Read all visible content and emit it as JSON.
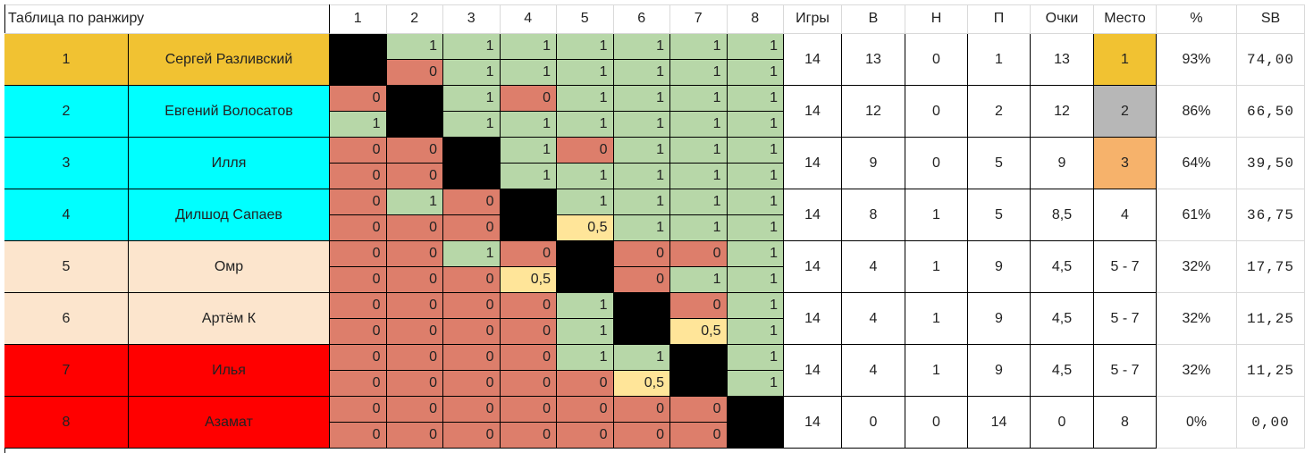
{
  "table": {
    "title": "Таблица по ранжиру",
    "column_numbers": [
      "1",
      "2",
      "3",
      "4",
      "5",
      "6",
      "7",
      "8"
    ],
    "stat_headers": [
      "Игры",
      "В",
      "Н",
      "П",
      "Очки",
      "Место",
      "%",
      "SB"
    ],
    "colors": {
      "win": "#b7d7a8",
      "loss": "#dd7e6b",
      "draw": "#ffe599",
      "self": "#000000",
      "first_place": "#f1c232",
      "second_place": "#b7b7b7",
      "third_place": "#f6b26b",
      "cyan_group": "#00ffff",
      "peach_group": "#fce5cd",
      "red_group": "#ff0000"
    },
    "players": [
      {
        "num": "1",
        "name": "Сергей Разливский",
        "row_color": "#f1c232",
        "r1": [
          "",
          "1",
          "1",
          "1",
          "1",
          "1",
          "1",
          "1"
        ],
        "r2": [
          "",
          "0",
          "1",
          "1",
          "1",
          "1",
          "1",
          "1"
        ],
        "games": "14",
        "wins": "13",
        "draws": "0",
        "losses": "1",
        "points": "13",
        "place": "1",
        "place_color": "#f1c232",
        "percent": "93%",
        "sb": "74,00"
      },
      {
        "num": "2",
        "name": "Евгений Волосатов",
        "row_color": "#00ffff",
        "r1": [
          "0",
          "",
          "1",
          "0",
          "1",
          "1",
          "1",
          "1"
        ],
        "r2": [
          "1",
          "",
          "1",
          "1",
          "1",
          "1",
          "1",
          "1"
        ],
        "games": "14",
        "wins": "12",
        "draws": "0",
        "losses": "2",
        "points": "12",
        "place": "2",
        "place_color": "#b7b7b7",
        "percent": "86%",
        "sb": "66,50"
      },
      {
        "num": "3",
        "name": "Илля",
        "row_color": "#00ffff",
        "r1": [
          "0",
          "0",
          "",
          "1",
          "0",
          "1",
          "1",
          "1"
        ],
        "r2": [
          "0",
          "0",
          "",
          "1",
          "1",
          "1",
          "1",
          "1"
        ],
        "games": "14",
        "wins": "9",
        "draws": "0",
        "losses": "5",
        "points": "9",
        "place": "3",
        "place_color": "#f6b26b",
        "percent": "64%",
        "sb": "39,50"
      },
      {
        "num": "4",
        "name": "Дилшод Сапаев",
        "row_color": "#00ffff",
        "r1": [
          "0",
          "1",
          "0",
          "",
          "1",
          "1",
          "1",
          "1"
        ],
        "r2": [
          "0",
          "0",
          "0",
          "",
          "0,5",
          "1",
          "1",
          "1"
        ],
        "games": "14",
        "wins": "8",
        "draws": "1",
        "losses": "5",
        "points": "8,5",
        "place": "4",
        "place_color": "",
        "percent": "61%",
        "sb": "36,75"
      },
      {
        "num": "5",
        "name": "Омр",
        "row_color": "#fce5cd",
        "r1": [
          "0",
          "0",
          "1",
          "0",
          "",
          "0",
          "0",
          "1"
        ],
        "r2": [
          "0",
          "0",
          "0",
          "0,5",
          "",
          "0",
          "1",
          "1"
        ],
        "games": "14",
        "wins": "4",
        "draws": "1",
        "losses": "9",
        "points": "4,5",
        "place": "5 - 7",
        "place_color": "",
        "percent": "32%",
        "sb": "17,75"
      },
      {
        "num": "6",
        "name": "Артём К",
        "row_color": "#fce5cd",
        "r1": [
          "0",
          "0",
          "0",
          "0",
          "1",
          "",
          "0",
          "1"
        ],
        "r2": [
          "0",
          "0",
          "0",
          "0",
          "1",
          "",
          "0,5",
          "1"
        ],
        "games": "14",
        "wins": "4",
        "draws": "1",
        "losses": "9",
        "points": "4,5",
        "place": "5 - 7",
        "place_color": "",
        "percent": "32%",
        "sb": "11,25"
      },
      {
        "num": "7",
        "name": "Илья",
        "row_color": "#ff0000",
        "r1": [
          "0",
          "0",
          "0",
          "0",
          "1",
          "1",
          "",
          "1"
        ],
        "r2": [
          "0",
          "0",
          "0",
          "0",
          "0",
          "0,5",
          "",
          "1"
        ],
        "games": "14",
        "wins": "4",
        "draws": "1",
        "losses": "9",
        "points": "4,5",
        "place": "5 - 7",
        "place_color": "",
        "percent": "32%",
        "sb": "11,25"
      },
      {
        "num": "8",
        "name": "Азамат",
        "row_color": "#ff0000",
        "r1": [
          "0",
          "0",
          "0",
          "0",
          "0",
          "0",
          "0",
          ""
        ],
        "r2": [
          "0",
          "0",
          "0",
          "0",
          "0",
          "0",
          "0",
          ""
        ],
        "games": "14",
        "wins": "0",
        "draws": "0",
        "losses": "14",
        "points": "0",
        "place": "8",
        "place_color": "",
        "percent": "0%",
        "sb": "0,00"
      }
    ]
  }
}
